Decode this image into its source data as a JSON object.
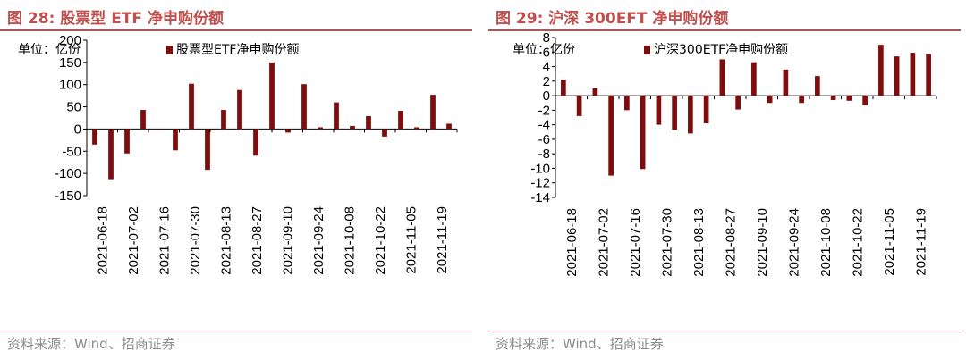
{
  "source_text": "资料来源：Wind、招商证券",
  "theme": {
    "accent": "#c0504d",
    "bar": "#7f0d0d",
    "source_color": "#8c8c8c"
  },
  "chart_data": [
    {
      "type": "bar",
      "title": "图 28:  股票型 ETF 净申购份额",
      "unit": "单位：亿份",
      "legend": "股票型ETF净申购份额",
      "ylim": [
        -150,
        200
      ],
      "yticks": [
        -150,
        -100,
        -50,
        0,
        50,
        100,
        150,
        200
      ],
      "xticks": [
        "2021-06-18",
        "2021-07-02",
        "2021-07-16",
        "2021-07-30",
        "2021-08-13",
        "2021-08-27",
        "2021-09-10",
        "2021-09-24",
        "2021-10-08",
        "2021-10-22",
        "2021-11-05",
        "2021-11-19"
      ],
      "values": [
        -35,
        -113,
        -55,
        43,
        0,
        -48,
        102,
        -92,
        43,
        88,
        -60,
        150,
        -8,
        101,
        4,
        60,
        7,
        29,
        -17,
        41,
        4,
        77,
        12
      ]
    },
    {
      "type": "bar",
      "title": "图 29:  沪深 300EFT 净申购份额",
      "unit": "单位：亿份",
      "legend": "沪深300ETF净申购份额",
      "ylim": [
        -14,
        8
      ],
      "yticks": [
        -14,
        -12,
        -10,
        -8,
        -6,
        -4,
        -2,
        0,
        2,
        4,
        6,
        8
      ],
      "xticks": [
        "2021-06-18",
        "2021-07-02",
        "2021-07-16",
        "2021-07-30",
        "2021-08-13",
        "2021-08-27",
        "2021-09-10",
        "2021-09-24",
        "2021-10-08",
        "2021-10-22",
        "2021-11-05",
        "2021-11-19"
      ],
      "values": [
        2.2,
        -2.8,
        1.0,
        -11.0,
        -2.0,
        -10.1,
        -4.0,
        -4.7,
        -5.2,
        -3.8,
        5.0,
        -1.9,
        4.6,
        -1.0,
        3.6,
        -1.0,
        2.7,
        -0.6,
        -0.7,
        -1.3,
        7.0,
        5.4,
        5.9,
        5.7
      ]
    }
  ]
}
